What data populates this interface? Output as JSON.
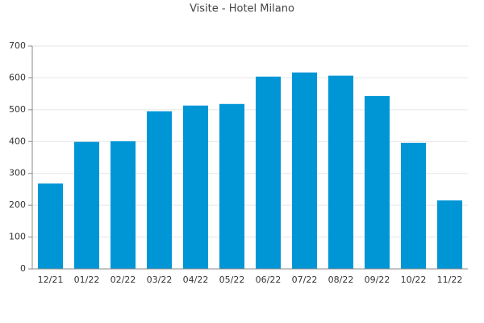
{
  "chart_data": {
    "type": "bar",
    "title": "Visite - Hotel Milano",
    "categories": [
      "12/21",
      "01/22",
      "02/22",
      "03/22",
      "04/22",
      "05/22",
      "06/22",
      "07/22",
      "08/22",
      "09/22",
      "10/22",
      "11/22"
    ],
    "values": [
      268,
      399,
      401,
      495,
      513,
      518,
      604,
      617,
      607,
      543,
      396,
      215
    ],
    "color": "#0096d6",
    "ylim": [
      0,
      700
    ],
    "yticks": [
      0,
      100,
      200,
      300,
      400,
      500,
      600,
      700
    ],
    "grid": true
  }
}
